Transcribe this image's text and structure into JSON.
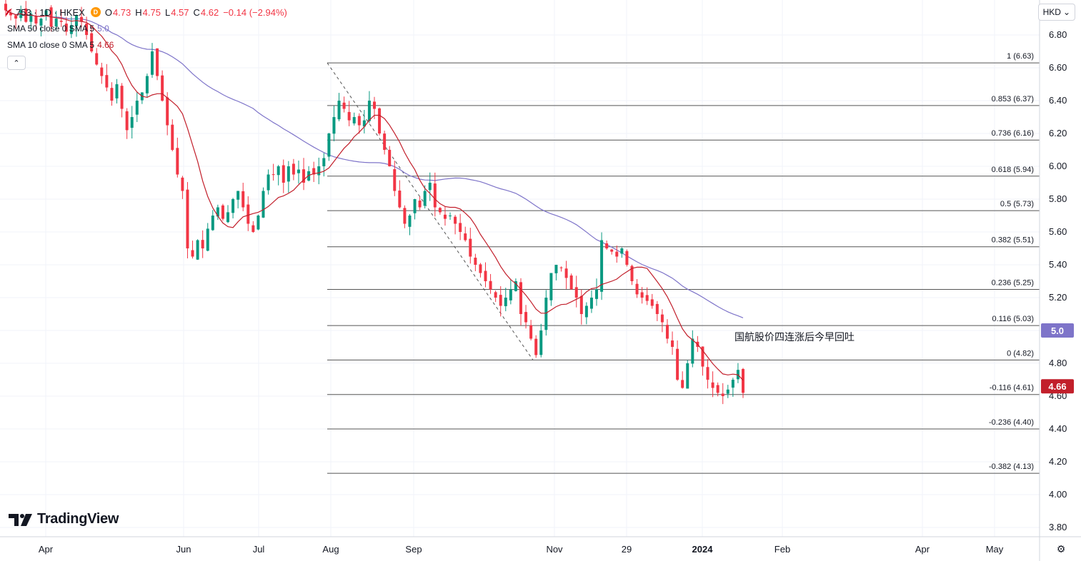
{
  "header": {
    "symbol": "753 · 1D · HKEX",
    "open_label": "O",
    "open": "4.73",
    "high_label": "H",
    "high": "4.75",
    "low_label": "L",
    "low": "4.57",
    "close_label": "C",
    "close": "4.62",
    "change": "−0.14 (−2.94%)",
    "badge": "D"
  },
  "indicators": [
    {
      "label": "SMA 50 close 0 SMA 5",
      "value": "5.0"
    },
    {
      "label": "SMA 10 close 0 SMA 5",
      "value": "4.66"
    }
  ],
  "currency": "HKD",
  "brand": "TradingView",
  "annotation": "国航股价四连涨后今早回吐",
  "colors": {
    "up": "#089981",
    "down": "#f23645",
    "sma50": "#7e74c9",
    "sma10": "#c21f2b",
    "grid": "#f0f3fa",
    "fib": "#555555"
  },
  "chart_data": {
    "type": "candlestick",
    "ylim": [
      3.75,
      6.95
    ],
    "y_ticks": [
      "6.80",
      "6.60",
      "6.40",
      "6.20",
      "6.00",
      "5.80",
      "5.60",
      "5.40",
      "5.20",
      "5.00",
      "4.80",
      "4.60",
      "4.40",
      "4.20",
      "4.00",
      "3.80"
    ],
    "x_ticks": [
      "Apr",
      "Jun",
      "Jul",
      "Aug",
      "Sep",
      "Nov",
      "29",
      "2024",
      "Feb",
      "Apr",
      "May"
    ],
    "price_labels": [
      {
        "text": "5.0",
        "value": 5.0,
        "color": "#7e74c9"
      },
      {
        "text": "4.66",
        "value": 4.66,
        "color": "#c21f2b"
      }
    ],
    "fibonacci": [
      {
        "label": "1 (6.63)",
        "value": 6.63
      },
      {
        "label": "0.853 (6.37)",
        "value": 6.37
      },
      {
        "label": "0.736 (6.16)",
        "value": 6.16
      },
      {
        "label": "0.618 (5.94)",
        "value": 5.94
      },
      {
        "label": "0.5 (5.73)",
        "value": 5.73
      },
      {
        "label": "0.382 (5.51)",
        "value": 5.51
      },
      {
        "label": "0.236 (5.25)",
        "value": 5.25
      },
      {
        "label": "0.116 (5.03)",
        "value": 5.03
      },
      {
        "label": "0 (4.82)",
        "value": 4.82
      },
      {
        "label": "-0.116 (4.61)",
        "value": 4.61
      },
      {
        "label": "-0.236 (4.40)",
        "value": 4.4
      },
      {
        "label": "-0.382 (4.13)",
        "value": 4.13
      }
    ],
    "trendline": {
      "from": 6.63,
      "to": 4.82
    },
    "closes": [
      6.95,
      6.92,
      6.9,
      6.95,
      6.88,
      6.93,
      6.87,
      6.9,
      6.95,
      6.85,
      6.9,
      6.88,
      6.82,
      6.86,
      6.92,
      6.88,
      6.8,
      6.7,
      6.62,
      6.55,
      6.48,
      6.4,
      6.5,
      6.35,
      6.22,
      6.3,
      6.4,
      6.45,
      6.55,
      6.7,
      6.55,
      6.4,
      6.25,
      6.1,
      5.95,
      5.85,
      5.5,
      5.45,
      5.55,
      5.5,
      5.62,
      5.7,
      5.75,
      5.68,
      5.72,
      5.8,
      5.85,
      5.75,
      5.65,
      5.6,
      5.7,
      5.85,
      5.95,
      5.95,
      6.0,
      5.9,
      6.0,
      5.95,
      5.98,
      5.9,
      5.97,
      5.95,
      6.0,
      6.05,
      6.2,
      6.3,
      6.4,
      6.35,
      6.28,
      6.3,
      6.25,
      6.28,
      6.4,
      6.35,
      6.2,
      6.1,
      6.0,
      5.85,
      5.75,
      5.65,
      5.7,
      5.8,
      5.75,
      5.85,
      5.9,
      5.75,
      5.72,
      5.68,
      5.7,
      5.65,
      5.6,
      5.55,
      5.45,
      5.4,
      5.35,
      5.3,
      5.25,
      5.2,
      5.15,
      5.2,
      5.25,
      5.3,
      5.1,
      5.05,
      4.95,
      4.85,
      5.0,
      5.2,
      5.35,
      5.4,
      5.38,
      5.32,
      5.25,
      5.2,
      5.1,
      5.15,
      5.2,
      5.25,
      5.55,
      5.5,
      5.48,
      5.45,
      5.5,
      5.4,
      5.3,
      5.22,
      5.2,
      5.18,
      5.15,
      5.1,
      5.05,
      4.95,
      4.9,
      4.7,
      4.65,
      4.8,
      4.95,
      4.9,
      4.78,
      4.7,
      4.65,
      4.62,
      4.6,
      4.64,
      4.7,
      4.76,
      4.62
    ]
  }
}
